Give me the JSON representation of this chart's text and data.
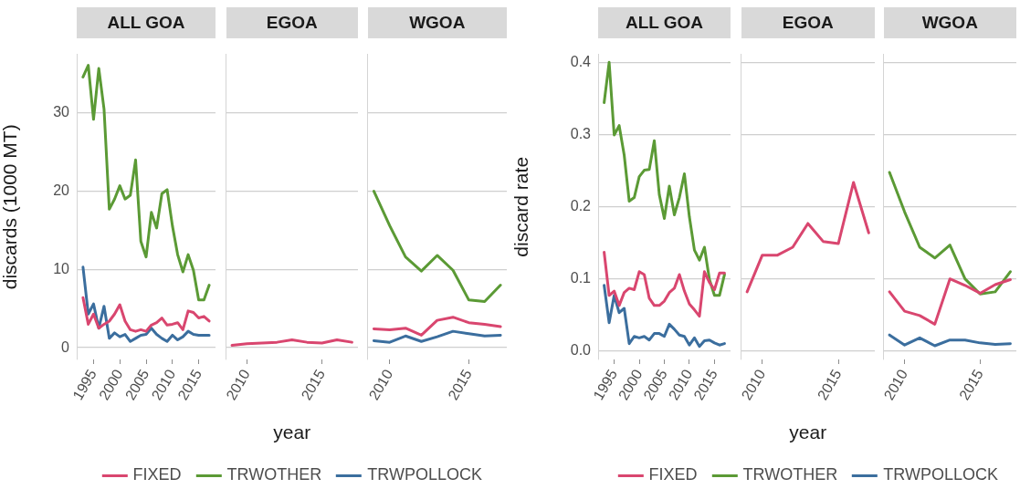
{
  "chart_data": [
    {
      "type": "line",
      "title": "ALL GOA",
      "ylabel": "discards (1000 MT)",
      "x": [
        1993,
        1994,
        1995,
        1996,
        1997,
        1998,
        1999,
        2000,
        2001,
        2002,
        2003,
        2004,
        2005,
        2006,
        2007,
        2008,
        2009,
        2010,
        2011,
        2012,
        2013,
        2014,
        2015,
        2016,
        2017
      ],
      "xlim": [
        1991.8,
        2018.2
      ],
      "xticks": [
        1995,
        2000,
        2005,
        2010,
        2015
      ],
      "ylim": [
        -1.5,
        37.5
      ],
      "yticks": [
        0,
        10,
        20,
        30
      ],
      "grid": "y",
      "series": [
        {
          "color": "#d9466f",
          "values": [
            6.4,
            3.0,
            4.3,
            2.5,
            3.0,
            3.4,
            4.3,
            5.5,
            3.4,
            2.3,
            2.1,
            2.3,
            2.1,
            2.9,
            3.2,
            3.8,
            2.9,
            3.0,
            3.2,
            2.3,
            4.7,
            4.5,
            3.8,
            4.0,
            3.4
          ]
        },
        {
          "color": "#5b9a35",
          "values": [
            34.6,
            36.1,
            29.2,
            35.7,
            30.5,
            17.7,
            19.0,
            20.7,
            19.0,
            19.5,
            24.0,
            13.6,
            11.6,
            17.3,
            15.3,
            19.7,
            20.2,
            15.6,
            11.9,
            9.7,
            11.9,
            9.9,
            6.1,
            6.1,
            8.0
          ]
        },
        {
          "color": "#3b6e9e",
          "values": [
            10.3,
            4.3,
            5.6,
            2.5,
            5.3,
            1.2,
            1.9,
            1.4,
            1.7,
            0.8,
            1.2,
            1.6,
            1.7,
            2.5,
            1.7,
            1.2,
            0.8,
            1.6,
            1.0,
            1.4,
            2.1,
            1.7,
            1.6,
            1.6,
            1.6
          ]
        }
      ]
    },
    {
      "type": "line",
      "title": "EGOA",
      "xlabel": "year",
      "x": [
        2009,
        2010,
        2011,
        2012,
        2013,
        2014,
        2015,
        2016,
        2017
      ],
      "xlim": [
        2008.6,
        2017.4
      ],
      "xticks": [
        2010,
        2015
      ],
      "ylim": [
        -1.5,
        37.5
      ],
      "yticks": [
        0,
        10,
        20,
        30
      ],
      "grid": "y",
      "tick_labels": "x",
      "legend": "bottom",
      "series": [
        {
          "name": "FIXED",
          "color": "#d9466f",
          "values": [
            0.3,
            0.5,
            0.6,
            0.7,
            1.0,
            0.7,
            0.6,
            1.0,
            0.7
          ]
        },
        {
          "name": "TRWOTHER",
          "color": "#5b9a35",
          "values": [
            null,
            null,
            null,
            null,
            null,
            null,
            null,
            null,
            null
          ]
        },
        {
          "name": "TRWPOLLOCK",
          "color": "#3b6e9e",
          "values": [
            null,
            null,
            null,
            null,
            null,
            null,
            null,
            null,
            null
          ]
        }
      ]
    },
    {
      "type": "line",
      "title": "WGOA",
      "x": [
        2009,
        2010,
        2011,
        2012,
        2013,
        2014,
        2015,
        2016,
        2017
      ],
      "xlim": [
        2008.6,
        2017.4
      ],
      "xticks": [
        2010,
        2015
      ],
      "ylim": [
        -1.5,
        37.5
      ],
      "yticks": [
        0,
        10,
        20,
        30
      ],
      "grid": "y",
      "tick_labels": "x",
      "series": [
        {
          "color": "#d9466f",
          "values": [
            2.4,
            2.3,
            2.5,
            1.6,
            3.5,
            3.9,
            3.2,
            3.0,
            2.7
          ]
        },
        {
          "color": "#5b9a35",
          "values": [
            20.0,
            15.6,
            11.6,
            9.8,
            11.8,
            9.9,
            6.1,
            5.9,
            8.0
          ]
        },
        {
          "color": "#3b6e9e",
          "values": [
            0.9,
            0.7,
            1.5,
            0.8,
            1.4,
            2.1,
            1.8,
            1.5,
            1.6
          ]
        }
      ]
    },
    {
      "type": "line",
      "title": "ALL GOA",
      "ylabel": "discard rate",
      "x": [
        1993,
        1994,
        1995,
        1996,
        1997,
        1998,
        1999,
        2000,
        2001,
        2002,
        2003,
        2004,
        2005,
        2006,
        2007,
        2008,
        2009,
        2010,
        2011,
        2012,
        2013,
        2014,
        2015,
        2016,
        2017
      ],
      "xlim": [
        1991.8,
        2018.2
      ],
      "xticks": [
        1995,
        2000,
        2005,
        2010,
        2015
      ],
      "ylim": [
        -0.012,
        0.412
      ],
      "yticks": [
        {
          "value": 0,
          "label": "0.0"
        },
        0.1,
        0.2,
        0.3,
        0.4
      ],
      "grid": "y",
      "series": [
        {
          "color": "#d9466f",
          "values": [
            0.137,
            0.077,
            0.083,
            0.063,
            0.081,
            0.087,
            0.085,
            0.11,
            0.106,
            0.073,
            0.063,
            0.063,
            0.069,
            0.081,
            0.087,
            0.106,
            0.083,
            0.065,
            0.057,
            0.048,
            0.11,
            0.095,
            0.085,
            0.108,
            0.108
          ]
        },
        {
          "color": "#5b9a35",
          "values": [
            0.345,
            0.401,
            0.3,
            0.313,
            0.272,
            0.208,
            0.213,
            0.242,
            0.251,
            0.252,
            0.292,
            0.217,
            0.184,
            0.229,
            0.189,
            0.213,
            0.246,
            0.186,
            0.14,
            0.126,
            0.144,
            0.099,
            0.077,
            0.077,
            0.106
          ]
        },
        {
          "color": "#3b6e9e",
          "values": [
            0.091,
            0.039,
            0.077,
            0.053,
            0.059,
            0.01,
            0.02,
            0.018,
            0.02,
            0.015,
            0.024,
            0.024,
            0.02,
            0.037,
            0.03,
            0.022,
            0.02,
            0.008,
            0.018,
            0.006,
            0.014,
            0.015,
            0.011,
            0.008,
            0.01
          ]
        }
      ]
    },
    {
      "type": "line",
      "title": "EGOA",
      "xlabel": "year",
      "x": [
        2009,
        2010,
        2011,
        2012,
        2013,
        2014,
        2015,
        2016,
        2017
      ],
      "xlim": [
        2008.6,
        2017.4
      ],
      "xticks": [
        2010,
        2015
      ],
      "ylim": [
        -0.012,
        0.412
      ],
      "yticks": [
        0,
        0.1,
        0.2,
        0.3,
        0.4
      ],
      "grid": "y",
      "tick_labels": "x",
      "legend": "bottom",
      "series": [
        {
          "name": "FIXED",
          "color": "#d9466f",
          "values": [
            0.082,
            0.133,
            0.133,
            0.144,
            0.177,
            0.152,
            0.149,
            0.234,
            0.164
          ]
        },
        {
          "name": "TRWOTHER",
          "color": "#5b9a35",
          "values": [
            null,
            null,
            null,
            null,
            null,
            null,
            null,
            null,
            null
          ]
        },
        {
          "name": "TRWPOLLOCK",
          "color": "#3b6e9e",
          "values": [
            null,
            null,
            null,
            null,
            null,
            null,
            null,
            null,
            null
          ]
        }
      ]
    },
    {
      "type": "line",
      "title": "WGOA",
      "x": [
        2009,
        2010,
        2011,
        2012,
        2013,
        2014,
        2015,
        2016,
        2017
      ],
      "xlim": [
        2008.6,
        2017.4
      ],
      "xticks": [
        2010,
        2015
      ],
      "ylim": [
        -0.012,
        0.412
      ],
      "yticks": [
        0,
        0.1,
        0.2,
        0.3,
        0.4
      ],
      "grid": "y",
      "tick_labels": "x",
      "series": [
        {
          "color": "#d9466f",
          "values": [
            0.082,
            0.055,
            0.049,
            0.037,
            0.1,
            0.091,
            0.08,
            0.092,
            0.099
          ]
        },
        {
          "color": "#5b9a35",
          "values": [
            0.248,
            0.193,
            0.144,
            0.129,
            0.147,
            0.1,
            0.079,
            0.082,
            0.11
          ]
        },
        {
          "color": "#3b6e9e",
          "values": [
            0.022,
            0.008,
            0.018,
            0.007,
            0.015,
            0.015,
            0.011,
            0.009,
            0.01
          ]
        }
      ]
    }
  ]
}
